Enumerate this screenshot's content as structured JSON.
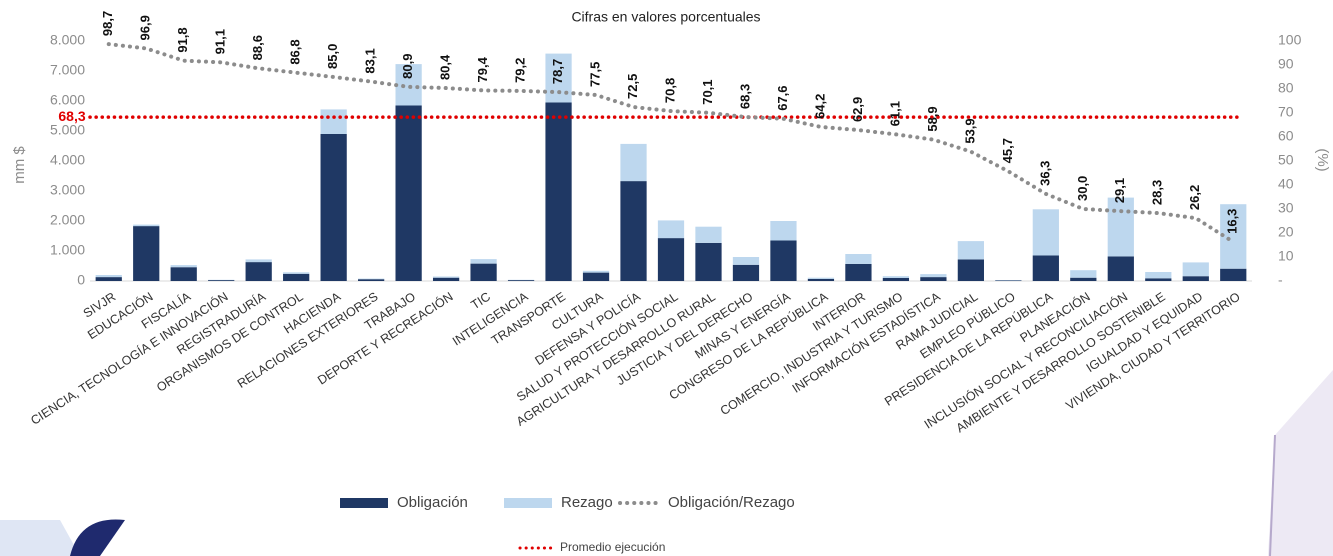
{
  "chart_data": {
    "type": "bar",
    "stacked": true,
    "title": "Cifras en valores porcentuales",
    "y_label": "mm $",
    "y2_label": "(%)",
    "categories": [
      "SIVJR",
      "EDUCACIÓN",
      "FISCALÍA",
      "CIENCIA, TECNOLOGÍA E INNOVACIÓN",
      "REGISTRADURÍA",
      "ORGANISMOS DE CONTROL",
      "HACIENDA",
      "RELACIONES EXTERIORES",
      "TRABAJO",
      "DEPORTE Y RECREACIÓN",
      "TIC",
      "INTELIGENCIA",
      "TRANSPORTE",
      "CULTURA",
      "DEFENSA Y POLICÍA",
      "SALUD Y PROTECCIÓN SOCIAL",
      "AGRICULTURA Y DESARROLLO RURAL",
      "JUSTICIA Y DEL DERECHO",
      "MINAS Y ENERGÍA",
      "CONGRESO DE LA REPÚBLICA",
      "INTERIOR",
      "COMERCIO, INDUSTRIA Y TURISMO",
      "INFORMACIÓN ESTADÍSTICA",
      "RAMA JUDICIAL",
      "EMPLEO PÚBLICO",
      "PRESIDENCIA DE LA REPÚBLICA",
      "PLANEACIÓN",
      "INCLUSIÓN SOCIAL Y RECONCILIACIÓN",
      "AMBIENTE Y DESARROLLO SOSTENIBLE",
      "IGUALDAD Y EQUIDAD",
      "VIVIENDA, CIUDAD Y TERRITORIO"
    ],
    "series": [
      {
        "name": "Obligación",
        "type": "bar",
        "color": "#1f3864",
        "values": [
          130,
          1830,
          460,
          30,
          630,
          240,
          4900,
          60,
          5850,
          110,
          580,
          30,
          5950,
          280,
          3330,
          1430,
          1270,
          540,
          1350,
          70,
          570,
          100,
          130,
          720,
          20,
          850,
          110,
          820,
          90,
          160,
          410
        ]
      },
      {
        "name": "Rezago",
        "type": "bar",
        "color": "#bdd7ee",
        "values": [
          70,
          50,
          70,
          10,
          90,
          50,
          820,
          20,
          1380,
          40,
          150,
          10,
          1630,
          60,
          1240,
          590,
          540,
          260,
          650,
          40,
          330,
          60,
          100,
          610,
          10,
          1540,
          250,
          1960,
          210,
          460,
          2150
        ]
      },
      {
        "name": "Obligación/Rezago",
        "type": "line",
        "axis": "y2",
        "color": "#8c8c8c",
        "values": [
          98.7,
          96.9,
          91.8,
          91.1,
          88.6,
          86.8,
          85.0,
          83.1,
          80.9,
          80.4,
          79.4,
          79.2,
          78.7,
          77.5,
          72.5,
          70.8,
          70.1,
          68.3,
          67.6,
          64.2,
          62.9,
          61.1,
          58.9,
          53.9,
          45.7,
          36.3,
          30.0,
          29.1,
          28.3,
          26.2,
          16.3
        ],
        "value_labels": [
          "98,7",
          "96,9",
          "91,8",
          "91,1",
          "88,6",
          "86,8",
          "85,0",
          "83,1",
          "80,9",
          "80,4",
          "79,4",
          "79,2",
          "78,7",
          "77,5",
          "72,5",
          "70,8",
          "70,1",
          "68,3",
          "67,6",
          "64,2",
          "62,9",
          "61,1",
          "58,9",
          "53,9",
          "45,7",
          "36,3",
          "30,0",
          "29,1",
          "28,3",
          "26,2",
          "16,3"
        ]
      }
    ],
    "reference_line": {
      "name": "Promedio ejecución",
      "value": 68.3,
      "label": "68,3",
      "axis": "y2",
      "color": "#e00000"
    },
    "ylim": [
      0,
      8000
    ],
    "yticks": [
      0,
      {
        "value": 1000,
        "label": "1.000"
      },
      {
        "value": 2000,
        "label": "2.000"
      },
      {
        "value": 3000,
        "label": "3.000"
      },
      {
        "value": 4000,
        "label": "4.000"
      },
      {
        "value": 5000,
        "label": "5.000"
      },
      {
        "value": 6000,
        "label": "6.000"
      },
      {
        "value": 7000,
        "label": "7.000"
      },
      {
        "value": 8000,
        "label": "8.000"
      }
    ],
    "y2lim": [
      0,
      100
    ],
    "y2ticks": [
      {
        "value": 0,
        "label": "-"
      },
      10,
      20,
      30,
      40,
      50,
      60,
      70,
      80,
      90,
      100
    ],
    "grid": false,
    "legend": "bottom"
  }
}
